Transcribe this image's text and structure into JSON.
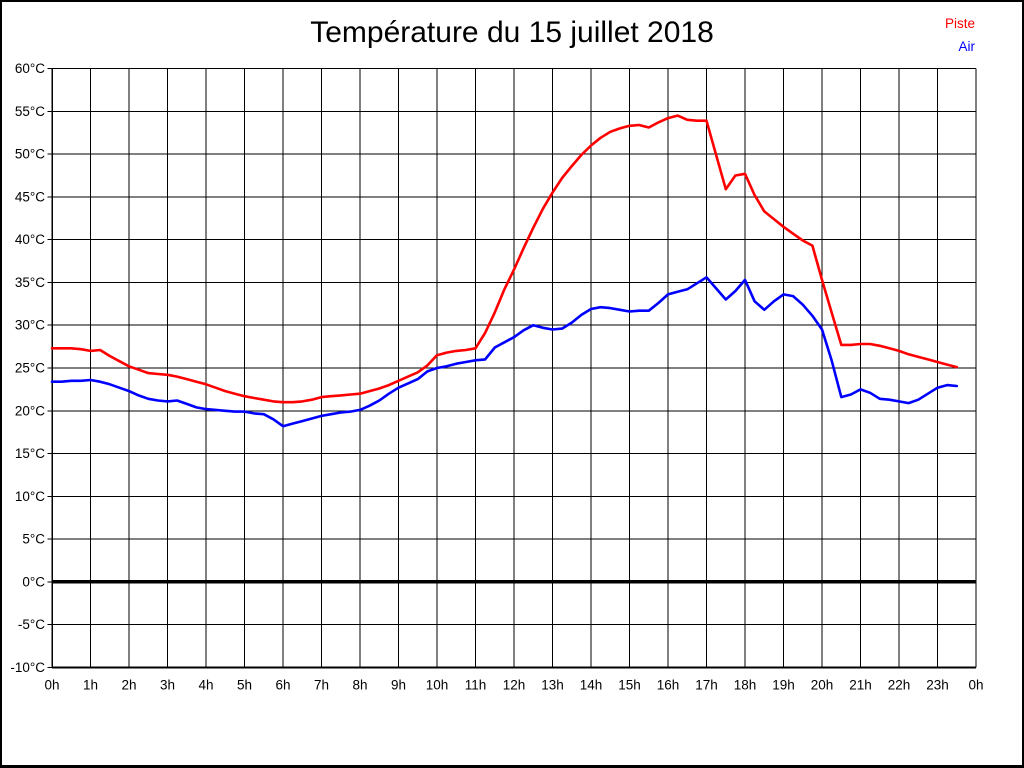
{
  "title": "Température du 15 juillet 2018",
  "legend": {
    "piste": "Piste",
    "air": "Air"
  },
  "colors": {
    "piste": "#ff0000",
    "air": "#0000ff",
    "grid": "#000000",
    "zero_line": "#000000",
    "background": "#ffffff",
    "text": "#000000"
  },
  "chart_data": {
    "type": "line",
    "title": "Température du 15 juillet 2018",
    "xlabel": "",
    "ylabel": "",
    "ylim": [
      -10,
      60
    ],
    "xlim_hours": [
      0,
      24
    ],
    "grid": true,
    "zero_line_bold": true,
    "legend_position": "top-right",
    "ytick_values": [
      60,
      55,
      50,
      45,
      40,
      35,
      30,
      25,
      20,
      15,
      10,
      5,
      0,
      -5,
      -10
    ],
    "ytick_labels": [
      "60°C",
      "55°C",
      "50°C",
      "45°C",
      "40°C",
      "35°C",
      "30°C",
      "25°C",
      "20°C",
      "15°C",
      "10°C",
      "5°C",
      "0°C",
      "-5°C",
      "-10°C"
    ],
    "xtick_values": [
      0,
      1,
      2,
      3,
      4,
      5,
      6,
      7,
      8,
      9,
      10,
      11,
      12,
      13,
      14,
      15,
      16,
      17,
      18,
      19,
      20,
      21,
      22,
      23,
      24
    ],
    "xtick_labels": [
      "0h",
      "1h",
      "2h",
      "3h",
      "4h",
      "5h",
      "6h",
      "7h",
      "8h",
      "9h",
      "10h",
      "11h",
      "12h",
      "13h",
      "14h",
      "15h",
      "16h",
      "17h",
      "18h",
      "19h",
      "20h",
      "21h",
      "22h",
      "23h",
      "0h"
    ],
    "x": [
      0,
      0.25,
      0.5,
      0.75,
      1,
      1.25,
      1.5,
      1.75,
      2,
      2.25,
      2.5,
      2.75,
      3,
      3.25,
      3.5,
      3.75,
      4,
      4.25,
      4.5,
      4.75,
      5,
      5.25,
      5.5,
      5.75,
      6,
      6.25,
      6.5,
      6.75,
      7,
      7.25,
      7.5,
      7.75,
      8,
      8.25,
      8.5,
      8.75,
      9,
      9.25,
      9.5,
      9.75,
      10,
      10.25,
      10.5,
      10.75,
      11,
      11.25,
      11.5,
      11.75,
      12,
      12.25,
      12.5,
      12.75,
      13,
      13.25,
      13.5,
      13.75,
      14,
      14.25,
      14.5,
      14.75,
      15,
      15.25,
      15.5,
      15.75,
      16,
      16.25,
      16.5,
      16.75,
      17,
      17.25,
      17.5,
      17.75,
      18,
      18.25,
      18.5,
      18.75,
      19,
      19.25,
      19.5,
      19.75,
      20,
      20.25,
      20.5,
      20.75,
      21,
      21.25,
      21.5,
      21.75,
      22,
      22.25,
      22.5,
      22.75,
      23,
      23.25,
      23.5
    ],
    "series": [
      {
        "name": "Piste",
        "color": "#ff0000",
        "values": [
          27.3,
          27.3,
          27.3,
          27.2,
          27.0,
          27.1,
          26.4,
          25.8,
          25.2,
          24.8,
          24.4,
          24.3,
          24.2,
          24.0,
          23.7,
          23.4,
          23.1,
          22.7,
          22.3,
          22.0,
          21.7,
          21.5,
          21.3,
          21.1,
          21.0,
          21.0,
          21.1,
          21.3,
          21.6,
          21.7,
          21.8,
          21.9,
          22.0,
          22.3,
          22.6,
          23.0,
          23.5,
          24.0,
          24.5,
          25.3,
          26.5,
          26.8,
          27.0,
          27.1,
          27.3,
          29.1,
          31.5,
          34.2,
          36.5,
          39.0,
          41.4,
          43.6,
          45.5,
          47.2,
          48.6,
          49.9,
          51.0,
          51.9,
          52.6,
          53.0,
          53.3,
          53.4,
          53.1,
          53.7,
          54.2,
          54.5,
          54.0,
          53.9,
          53.9,
          49.9,
          45.9,
          47.5,
          47.7,
          45.2,
          43.3,
          42.4,
          41.5,
          40.7,
          39.9,
          39.3,
          35.3,
          31.5,
          27.7,
          27.7,
          27.8,
          27.8,
          27.6,
          27.3,
          27.0,
          26.6,
          26.3,
          26.0,
          25.7,
          25.4,
          25.1
        ]
      },
      {
        "name": "Air",
        "color": "#0000ff",
        "values": [
          23.4,
          23.4,
          23.5,
          23.5,
          23.6,
          23.4,
          23.1,
          22.7,
          22.3,
          21.8,
          21.4,
          21.2,
          21.1,
          21.2,
          20.8,
          20.4,
          20.2,
          20.1,
          20.0,
          19.9,
          19.9,
          19.7,
          19.6,
          19.0,
          18.2,
          18.5,
          18.8,
          19.1,
          19.4,
          19.6,
          19.8,
          19.9,
          20.1,
          20.6,
          21.2,
          22.0,
          22.7,
          23.2,
          23.7,
          24.6,
          25.0,
          25.2,
          25.5,
          25.7,
          25.9,
          26.0,
          27.4,
          28.0,
          28.6,
          29.4,
          30.0,
          29.7,
          29.5,
          29.6,
          30.3,
          31.2,
          31.9,
          32.1,
          32.0,
          31.8,
          31.6,
          31.7,
          31.7,
          32.6,
          33.6,
          33.9,
          34.2,
          34.9,
          35.6,
          34.3,
          33.0,
          34.0,
          35.3,
          32.8,
          31.8,
          32.8,
          33.6,
          33.4,
          32.4,
          31.1,
          29.5,
          25.9,
          21.6,
          21.9,
          22.5,
          22.1,
          21.4,
          21.3,
          21.1,
          20.9,
          21.3,
          22.0,
          22.7,
          23.0,
          22.9
        ]
      }
    ]
  }
}
